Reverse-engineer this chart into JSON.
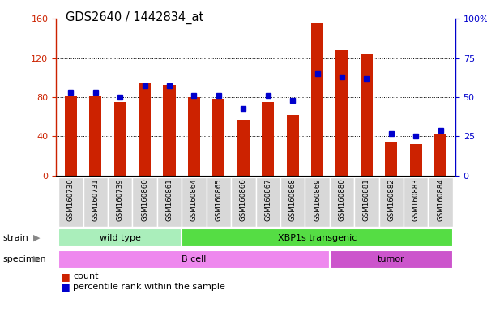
{
  "title": "GDS2640 / 1442834_at",
  "samples": [
    "GSM160730",
    "GSM160731",
    "GSM160739",
    "GSM160860",
    "GSM160861",
    "GSM160864",
    "GSM160865",
    "GSM160866",
    "GSM160867",
    "GSM160868",
    "GSM160869",
    "GSM160880",
    "GSM160881",
    "GSM160882",
    "GSM160883",
    "GSM160884"
  ],
  "counts": [
    82,
    82,
    75,
    95,
    92,
    80,
    78,
    57,
    75,
    62,
    155,
    128,
    124,
    35,
    32,
    42
  ],
  "percentiles": [
    53,
    53,
    50,
    57,
    57,
    51,
    51,
    43,
    51,
    48,
    65,
    63,
    62,
    27,
    25,
    29
  ],
  "bar_color": "#cc2200",
  "dot_color": "#0000cc",
  "ylim_left": [
    0,
    160
  ],
  "ylim_right": [
    0,
    100
  ],
  "yticks_left": [
    0,
    40,
    80,
    120,
    160
  ],
  "yticks_right": [
    0,
    25,
    50,
    75,
    100
  ],
  "yticklabels_right": [
    "0",
    "25",
    "50",
    "75",
    "100%"
  ],
  "strain_groups": [
    {
      "label": "wild type",
      "start": 0,
      "end": 5,
      "color": "#aaeebb"
    },
    {
      "label": "XBP1s transgenic",
      "start": 5,
      "end": 16,
      "color": "#55dd44"
    }
  ],
  "specimen_groups": [
    {
      "label": "B cell",
      "start": 0,
      "end": 11,
      "color": "#ee88ee"
    },
    {
      "label": "tumor",
      "start": 11,
      "end": 16,
      "color": "#cc55cc"
    }
  ],
  "strain_label": "strain",
  "specimen_label": "specimen",
  "grid_color": "black",
  "bg_color": "#ffffff",
  "plot_bg": "#ffffff",
  "tick_color_left": "#cc2200",
  "tick_color_right": "#0000cc",
  "xlabel_bg": "#d8d8d8",
  "bar_width": 0.5
}
